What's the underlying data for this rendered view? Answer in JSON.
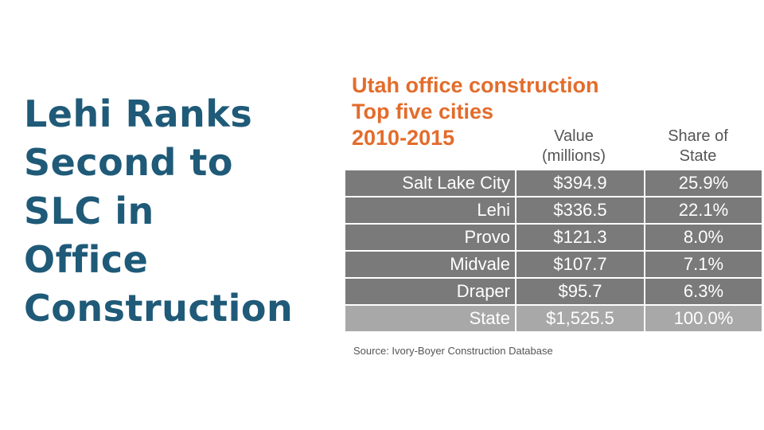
{
  "slide": {
    "title_lines": [
      "Lehi Ranks",
      "Second to",
      "SLC in",
      "Office",
      "Construction"
    ]
  },
  "table": {
    "title_lines": [
      "Utah office construction",
      "Top five cities",
      "2010-2015"
    ],
    "headers": {
      "value": [
        "Value",
        "(millions)"
      ],
      "share": [
        "Share of",
        "State"
      ]
    },
    "rows": [
      {
        "city": "Salt Lake City",
        "value": "$394.9",
        "share": "25.9%"
      },
      {
        "city": "Lehi",
        "value": "$336.5",
        "share": "22.1%"
      },
      {
        "city": "Provo",
        "value": "$121.3",
        "share": "8.0%"
      },
      {
        "city": "Midvale",
        "value": "$107.7",
        "share": "7.1%"
      },
      {
        "city": "Draper",
        "value": "$95.7",
        "share": "6.3%"
      }
    ],
    "total": {
      "city": "State",
      "value": "$1,525.5",
      "share": "100.0%"
    },
    "source": "Source: Ivory-Boyer Construction Database"
  },
  "colors": {
    "title": "#1f5a78",
    "table_title": "#e36c2b",
    "row_fill": "#7a7a7a",
    "total_fill": "#a8a8a8"
  }
}
